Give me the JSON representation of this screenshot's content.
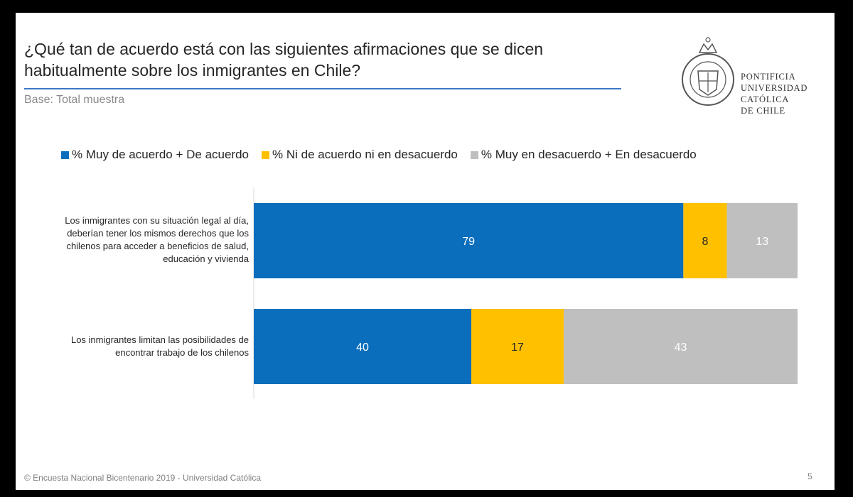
{
  "slide": {
    "title": "¿Qué tan de acuerdo está con las siguientes afirmaciones que se dicen habitualmente sobre los inmigrantes en Chile?",
    "base": "Base: Total muestra",
    "footer": "© Encuesta Nacional Bicentenario 2019 - Universidad Católica",
    "page_number": "5",
    "logo": {
      "icon": "university-seal-icon",
      "lines": [
        "PONTIFICIA",
        "UNIVERSIDAD",
        "CATÓLICA",
        "DE CHILE"
      ]
    },
    "colors": {
      "accent_rule": "#3b78c9"
    }
  },
  "chart_data": {
    "type": "bar",
    "orientation": "horizontal",
    "stacked": true,
    "title": "¿Qué tan de acuerdo está con las siguientes afirmaciones que se dicen habitualmente sobre los inmigrantes en Chile?",
    "xlim": [
      0,
      100
    ],
    "legend_position": "top",
    "grid": false,
    "categories": [
      "Los inmigrantes con su situación legal al día, deberían tener los mismos derechos que los chilenos para acceder a beneficios de salud, educación y vivienda",
      "Los inmigrantes limitan las posibilidades de encontrar trabajo de los chilenos"
    ],
    "series": [
      {
        "name": "% Muy de acuerdo + De acuerdo",
        "color": "#0a6ebd",
        "values": [
          79,
          40
        ]
      },
      {
        "name": "% Ni de acuerdo ni en desacuerdo",
        "color": "#ffc000",
        "values": [
          8,
          17
        ]
      },
      {
        "name": "% Muy en desacuerdo + En desacuerdo",
        "color": "#bfbfbf",
        "values": [
          13,
          43
        ]
      }
    ]
  }
}
